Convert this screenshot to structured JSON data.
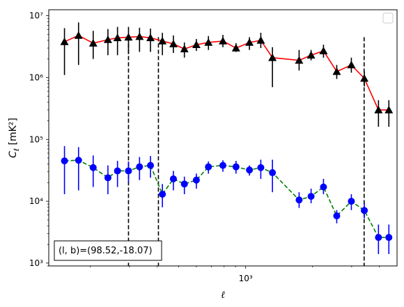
{
  "chart_data": {
    "type": "scatter",
    "title": "",
    "xlabel": "ℓ",
    "ylabel_main": "C",
    "ylabel_sub": "ℓ",
    "ylabel_units": "[mK²]",
    "x_scale": "log",
    "y_scale": "log",
    "xlim": [
      130,
      4800
    ],
    "ylim": [
      900,
      12500000
    ],
    "grid": false,
    "legend": "top-right (empty box)",
    "x_tick_labels": [
      {
        "value": 1000,
        "label": "10³"
      }
    ],
    "y_tick_labels": [
      {
        "value": 1000,
        "label": "10³"
      },
      {
        "value": 10000,
        "label": "10⁴"
      },
      {
        "value": 100000,
        "label": "10⁵"
      },
      {
        "value": 1000000,
        "label": "10⁶"
      },
      {
        "value": 10000000,
        "label": "10⁷"
      }
    ],
    "vertical_lines": [
      297,
      405,
      3413
    ],
    "annotation": "(l, b)=(98.52,-18.07)",
    "series": [
      {
        "line_color": "#ff0000",
        "marker": "triangle",
        "marker_color": "#000000",
        "errorbar_color": "#000000",
        "line_style": "solid",
        "x": [
          153,
          177,
          206,
          240,
          265,
          297,
          333,
          373,
          422,
          473,
          530,
          600,
          680,
          790,
          905,
          1040,
          1170,
          1320,
          1740,
          1970,
          2240,
          2570,
          2990,
          3420,
          3960,
          4410
        ],
        "y": [
          3800000,
          4800000,
          3600000,
          4100000,
          4400000,
          4500000,
          4600000,
          4400000,
          3900000,
          3500000,
          2900000,
          3400000,
          3700000,
          3900000,
          3000000,
          3700000,
          4000000,
          2100000,
          1900000,
          2300000,
          2700000,
          1250000,
          1600000,
          970000,
          300000,
          300000
        ],
        "yerr_low": [
          1100000,
          1600000,
          2000000,
          2300000,
          2300000,
          2400000,
          2600000,
          2600000,
          2300000,
          2500000,
          2100000,
          2700000,
          2800000,
          3100000,
          2600000,
          2800000,
          3000000,
          700000,
          1300000,
          1900000,
          2100000,
          950000,
          1200000,
          720000,
          160000,
          160000
        ],
        "yerr_high": [
          6300000,
          7800000,
          5700000,
          6100000,
          6600000,
          6600000,
          6400000,
          6200000,
          5300000,
          4800000,
          3700000,
          4200000,
          4700000,
          4900000,
          3600000,
          4500000,
          5300000,
          3100000,
          2800000,
          2800000,
          3400000,
          1600000,
          2100000,
          1250000,
          430000,
          430000
        ]
      },
      {
        "line_color": "#008000",
        "marker": "circle",
        "marker_color": "#0000ff",
        "errorbar_color": "#0000ff",
        "line_style": "dashed",
        "x": [
          153,
          177,
          206,
          240,
          265,
          297,
          333,
          373,
          422,
          473,
          530,
          600,
          680,
          790,
          905,
          1040,
          1170,
          1320,
          1740,
          1970,
          2240,
          2570,
          2990,
          3420,
          3960,
          4410
        ],
        "y": [
          45000,
          46000,
          35000,
          24000,
          31000,
          31000,
          36000,
          38000,
          13000,
          23000,
          19000,
          22000,
          36000,
          38000,
          36000,
          32000,
          35000,
          29000,
          10500,
          12000,
          17000,
          5800,
          10000,
          7100,
          2600,
          2600
        ],
        "yerr_low": [
          13000,
          15000,
          17000,
          13000,
          17000,
          20000,
          22000,
          24000,
          8000,
          15000,
          13000,
          16000,
          28000,
          30000,
          28000,
          26000,
          23000,
          14000,
          7800,
          9300,
          13000,
          4400,
          7200,
          5300,
          1400,
          1400
        ],
        "yerr_high": [
          78000,
          75000,
          55000,
          38000,
          45000,
          44000,
          52000,
          54000,
          19000,
          31000,
          25000,
          28000,
          44000,
          46000,
          45000,
          38000,
          47000,
          47000,
          14000,
          16000,
          23000,
          7200,
          13000,
          9500,
          4200,
          4200
        ]
      }
    ]
  }
}
